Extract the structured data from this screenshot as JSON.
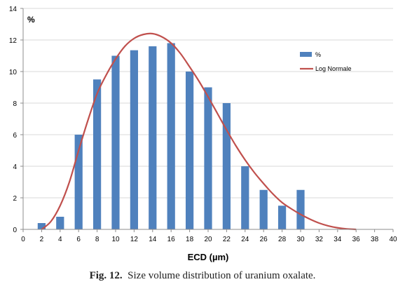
{
  "chart_data": {
    "type": "bar",
    "ylabel": "%",
    "xlabel": "ECD (µm)",
    "xlim": [
      0,
      40
    ],
    "ylim": [
      0,
      14
    ],
    "x_ticks": [
      "0",
      "2",
      "4",
      "6",
      "8",
      "10",
      "12",
      "14",
      "16",
      "18",
      "20",
      "22",
      "24",
      "26",
      "28",
      "30",
      "32",
      "34",
      "36",
      "38",
      "40"
    ],
    "y_ticks": [
      "0",
      "2",
      "4",
      "6",
      "8",
      "10",
      "12",
      "14"
    ],
    "grid": "horizontal",
    "legend_position": "right",
    "series": [
      {
        "name": "%",
        "kind": "bar",
        "color": "#4f81bd",
        "x": [
          2,
          4,
          6,
          8,
          10,
          12,
          14,
          16,
          18,
          20,
          22,
          24,
          26,
          28,
          30
        ],
        "values": [
          0.4,
          0.8,
          6.0,
          9.5,
          11.0,
          11.35,
          11.6,
          11.8,
          10.0,
          9.0,
          8.0,
          4.0,
          2.5,
          1.5,
          2.5
        ]
      },
      {
        "name": "Log Normale",
        "kind": "line",
        "color": "#c0504d",
        "x": [
          2,
          3,
          4,
          5,
          6,
          7,
          8,
          9,
          10,
          11,
          12,
          13,
          14,
          15,
          16,
          17,
          18,
          19,
          20,
          21,
          22,
          23,
          24,
          25,
          26,
          27,
          28,
          29,
          30,
          31,
          32,
          33,
          34,
          35,
          36
        ],
        "values": [
          0,
          0.5,
          1.5,
          3.0,
          5.0,
          6.9,
          8.6,
          9.8,
          10.8,
          11.6,
          12.1,
          12.35,
          12.4,
          12.2,
          11.8,
          11.15,
          10.3,
          9.4,
          8.4,
          7.35,
          6.3,
          5.3,
          4.4,
          3.6,
          2.9,
          2.25,
          1.7,
          1.3,
          0.95,
          0.65,
          0.4,
          0.22,
          0.1,
          0.03,
          0
        ]
      }
    ]
  },
  "caption": {
    "figure": "Fig. 12.",
    "text": "Size volume distribution of uranium oxalate."
  }
}
